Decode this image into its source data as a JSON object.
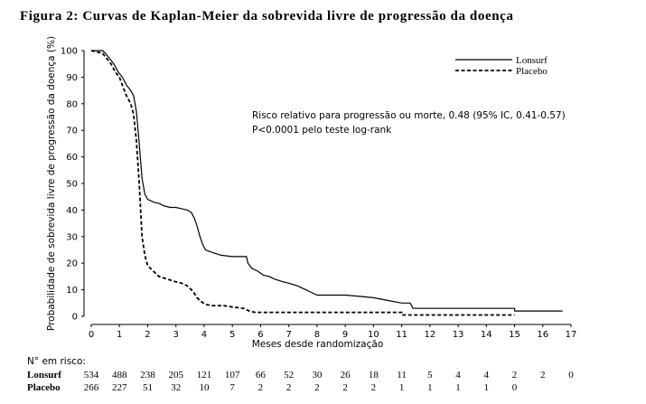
{
  "title": "Figura 2: Curvas de Kaplan-Meier da sobrevida livre de progressão da doença",
  "chart_data": {
    "type": "line",
    "subtype": "kaplan-meier",
    "xlabel": "Meses desde randomização",
    "ylabel": "Probabilidade de sobrevida livre de progressão da doença (%)",
    "xlim": [
      0,
      17
    ],
    "ylim": [
      0,
      100
    ],
    "xticks": [
      "0",
      "1",
      "2",
      "3",
      "4",
      "5",
      "6",
      "7",
      "8",
      "9",
      "10",
      "11",
      "12",
      "13",
      "14",
      "15",
      "16",
      "17"
    ],
    "yticks": [
      "0",
      "10",
      "20",
      "30",
      "40",
      "50",
      "60",
      "70",
      "80",
      "90",
      "100"
    ],
    "legend_position": "top-right",
    "grid": false,
    "annotations": [
      "Risco relativo para progressão ou morte, 0.48 (95% IC, 0.41-0.57)",
      "P<0.0001 pelo teste log-rank"
    ],
    "series": [
      {
        "name": "Lonsurf",
        "style": "solid",
        "color": "#000000",
        "points": [
          [
            0,
            100
          ],
          [
            0.4,
            100
          ],
          [
            0.5,
            99
          ],
          [
            0.65,
            97
          ],
          [
            0.8,
            95
          ],
          [
            0.95,
            92
          ],
          [
            1.1,
            90
          ],
          [
            1.25,
            87
          ],
          [
            1.4,
            85
          ],
          [
            1.5,
            83
          ],
          [
            1.6,
            77
          ],
          [
            1.7,
            65
          ],
          [
            1.8,
            52
          ],
          [
            1.9,
            46
          ],
          [
            2.0,
            44
          ],
          [
            2.2,
            43
          ],
          [
            2.4,
            42.5
          ],
          [
            2.6,
            41.5
          ],
          [
            2.8,
            41
          ],
          [
            3.0,
            41
          ],
          [
            3.2,
            40.5
          ],
          [
            3.4,
            40
          ],
          [
            3.55,
            39
          ],
          [
            3.65,
            37
          ],
          [
            3.75,
            34
          ],
          [
            3.85,
            30
          ],
          [
            3.95,
            27
          ],
          [
            4.05,
            25
          ],
          [
            4.3,
            24
          ],
          [
            4.6,
            23
          ],
          [
            5.0,
            22.5
          ],
          [
            5.5,
            22.5
          ],
          [
            5.55,
            20
          ],
          [
            5.7,
            18
          ],
          [
            5.9,
            17
          ],
          [
            6.1,
            15.5
          ],
          [
            6.3,
            15
          ],
          [
            6.5,
            14
          ],
          [
            6.8,
            13
          ],
          [
            7.0,
            12.5
          ],
          [
            7.3,
            11.5
          ],
          [
            7.6,
            10
          ],
          [
            7.8,
            9
          ],
          [
            8.0,
            8
          ],
          [
            8.5,
            8
          ],
          [
            9.0,
            8
          ],
          [
            9.5,
            7.5
          ],
          [
            10.0,
            7
          ],
          [
            10.5,
            6
          ],
          [
            11.0,
            5
          ],
          [
            11.3,
            5
          ],
          [
            11.4,
            3
          ],
          [
            12.0,
            3
          ],
          [
            13.0,
            3
          ],
          [
            14.0,
            3
          ],
          [
            15.0,
            3
          ],
          [
            15.01,
            2
          ],
          [
            15.5,
            2
          ],
          [
            16.0,
            2
          ],
          [
            16.7,
            2
          ]
        ]
      },
      {
        "name": "Placebo",
        "style": "dashed",
        "color": "#000000",
        "points": [
          [
            0,
            100
          ],
          [
            0.4,
            99
          ],
          [
            0.55,
            97
          ],
          [
            0.7,
            95
          ],
          [
            0.85,
            92
          ],
          [
            1.0,
            90
          ],
          [
            1.1,
            87
          ],
          [
            1.25,
            83
          ],
          [
            1.4,
            80
          ],
          [
            1.5,
            76
          ],
          [
            1.6,
            66
          ],
          [
            1.7,
            50
          ],
          [
            1.8,
            30
          ],
          [
            1.9,
            23
          ],
          [
            2.0,
            19
          ],
          [
            2.2,
            17
          ],
          [
            2.4,
            15
          ],
          [
            2.7,
            14
          ],
          [
            3.0,
            13
          ],
          [
            3.2,
            12.5
          ],
          [
            3.4,
            11.5
          ],
          [
            3.6,
            9.5
          ],
          [
            3.75,
            7
          ],
          [
            3.9,
            5.5
          ],
          [
            4.05,
            4.5
          ],
          [
            4.3,
            4
          ],
          [
            4.7,
            4
          ],
          [
            5.0,
            3.5
          ],
          [
            5.4,
            3
          ],
          [
            5.6,
            2
          ],
          [
            5.8,
            1.5
          ],
          [
            6.0,
            1.5
          ],
          [
            7.0,
            1.5
          ],
          [
            8.0,
            1.5
          ],
          [
            9.0,
            1.5
          ],
          [
            10.0,
            1.5
          ],
          [
            11.0,
            1.5
          ],
          [
            11.01,
            0.5
          ],
          [
            12.0,
            0.5
          ],
          [
            13.0,
            0.5
          ],
          [
            14.0,
            0.5
          ],
          [
            15.0,
            0.5
          ]
        ]
      }
    ]
  },
  "risk_table": {
    "heading": "N° em risco:",
    "rows": [
      {
        "label": "Lonsurf",
        "values": [
          "534",
          "488",
          "238",
          "205",
          "121",
          "107",
          "66",
          "52",
          "30",
          "26",
          "18",
          "11",
          "5",
          "4",
          "4",
          "2",
          "2",
          "0"
        ]
      },
      {
        "label": "Placebo",
        "values": [
          "266",
          "227",
          "51",
          "32",
          "10",
          "7",
          "2",
          "2",
          "2",
          "2",
          "2",
          "1",
          "1",
          "1",
          "1",
          "0"
        ]
      }
    ]
  }
}
